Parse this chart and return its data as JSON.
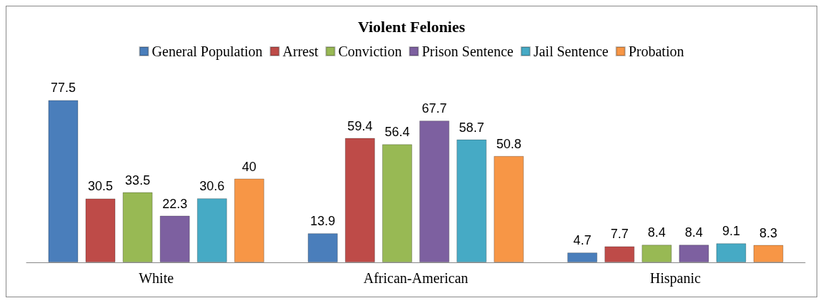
{
  "chart_data": {
    "type": "bar",
    "title": "Violent Felonies",
    "categories": [
      "White",
      "African-American",
      "Hispanic"
    ],
    "series": [
      {
        "name": "General Population",
        "color": "#4a7ebb",
        "values": [
          77.5,
          13.9,
          4.7
        ]
      },
      {
        "name": "Arrest",
        "color": "#be4b48",
        "values": [
          30.5,
          59.4,
          7.7
        ]
      },
      {
        "name": "Conviction",
        "color": "#98b954",
        "values": [
          33.5,
          56.4,
          8.4
        ]
      },
      {
        "name": "Prison Sentence",
        "color": "#7d60a0",
        "values": [
          22.3,
          67.7,
          8.4
        ]
      },
      {
        "name": "Jail Sentence",
        "color": "#46aac5",
        "values": [
          30.6,
          58.7,
          9.1
        ]
      },
      {
        "name": "Probation",
        "color": "#f79646",
        "values": [
          40,
          50.8,
          8.3
        ]
      }
    ],
    "data_labels": true,
    "legend": "top"
  }
}
